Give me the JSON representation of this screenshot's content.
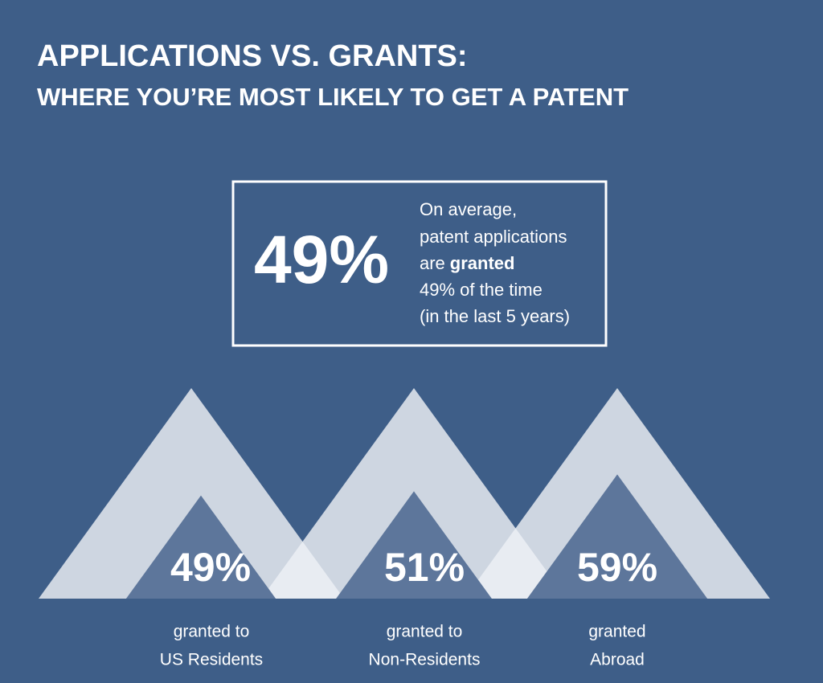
{
  "chart_data": {
    "type": "triangle",
    "title": "APPLICATIONS VS. GRANTS:",
    "subtitle": "WHERE YOU’RE MOST LIKELY TO GET A PATENT",
    "callout": {
      "value_label": "49%",
      "lines": [
        "On average,",
        "patent applications",
        "49% of the time",
        "(in the last 5 years)"
      ],
      "granted_line": [
        "are",
        "granted"
      ]
    },
    "categories": [
      [
        "granted to",
        "US Residents"
      ],
      [
        "granted to",
        "Non-Residents"
      ],
      [
        "granted",
        "Abroad"
      ]
    ],
    "values": [
      49,
      51,
      59
    ],
    "value_labels": [
      "49%",
      "51%",
      "59%"
    ],
    "ylim": [
      0,
      100
    ]
  }
}
